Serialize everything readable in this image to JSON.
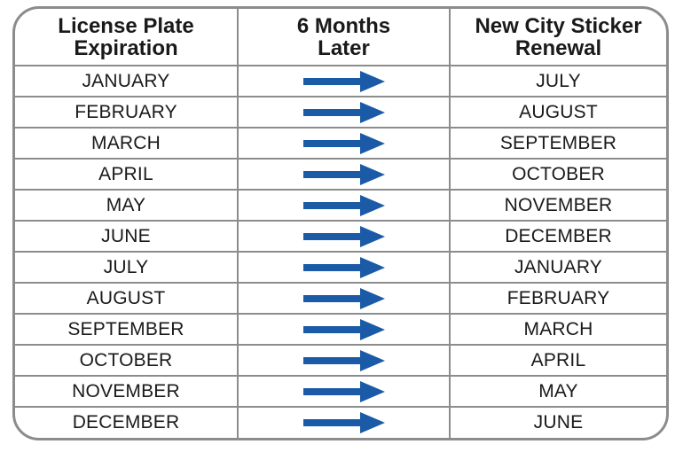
{
  "headers": {
    "col1": [
      "License Plate",
      "Expiration"
    ],
    "col2": [
      "6 Months",
      "Later"
    ],
    "col3": [
      "New City Sticker",
      "Renewal"
    ]
  },
  "rows": [
    {
      "expiration": "JANUARY",
      "renewal": "JULY"
    },
    {
      "expiration": "FEBRUARY",
      "renewal": "AUGUST"
    },
    {
      "expiration": "MARCH",
      "renewal": "SEPTEMBER"
    },
    {
      "expiration": "APRIL",
      "renewal": "OCTOBER"
    },
    {
      "expiration": "MAY",
      "renewal": "NOVEMBER"
    },
    {
      "expiration": "JUNE",
      "renewal": "DECEMBER"
    },
    {
      "expiration": "JULY",
      "renewal": "JANUARY"
    },
    {
      "expiration": "AUGUST",
      "renewal": "FEBRUARY"
    },
    {
      "expiration": "SEPTEMBER",
      "renewal": "MARCH"
    },
    {
      "expiration": "OCTOBER",
      "renewal": "APRIL"
    },
    {
      "expiration": "NOVEMBER",
      "renewal": "MAY"
    },
    {
      "expiration": "DECEMBER",
      "renewal": "JUNE"
    }
  ],
  "icons": {
    "row_arrow": "arrow-right-icon"
  },
  "colors": {
    "arrow": "#1a5aa6",
    "border": "#8c8c8c",
    "text": "#1a1a1a"
  }
}
